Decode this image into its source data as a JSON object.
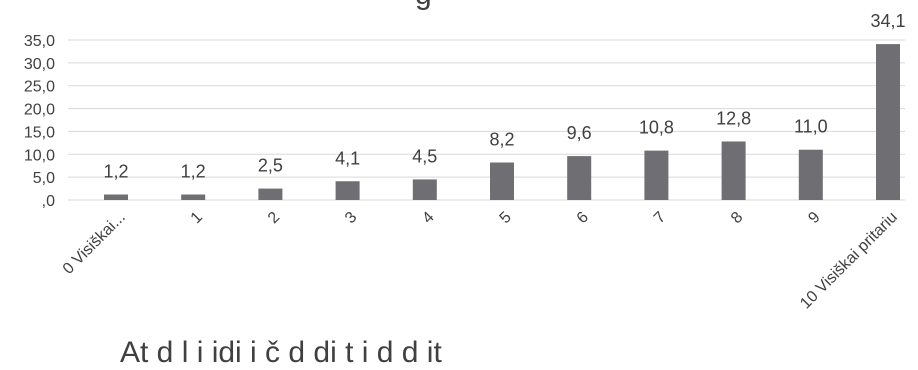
{
  "chart_data": {
    "type": "bar",
    "categories": [
      "0 Visiškai...",
      "1",
      "2",
      "3",
      "4",
      "5",
      "6",
      "7",
      "8",
      "9",
      "10 Visiškai pritariu"
    ],
    "values": [
      1.2,
      1.2,
      2.5,
      4.1,
      4.5,
      8.2,
      9.6,
      10.8,
      12.8,
      11.0,
      34.1
    ],
    "value_labels": [
      "1,2",
      "1,2",
      "2,5",
      "4,1",
      "4,5",
      "8,2",
      "9,6",
      "10,8",
      "12,8",
      "11,0",
      "34,1"
    ],
    "ylim": [
      0,
      35
    ],
    "yticks": [
      0,
      5,
      10,
      15,
      20,
      25,
      30,
      35
    ],
    "ytick_labels": [
      ",0",
      "5,0",
      "10,0",
      "15,0",
      "20,0",
      "25,0",
      "30,0",
      "35,0"
    ],
    "grid": true,
    "bar_color": "#6e6e73",
    "grid_color": "#d9d9d9",
    "partial_top_text": "g",
    "partial_bottom_text": "At  d    l i  idi i   č  d  di t  i   d  d     it"
  }
}
